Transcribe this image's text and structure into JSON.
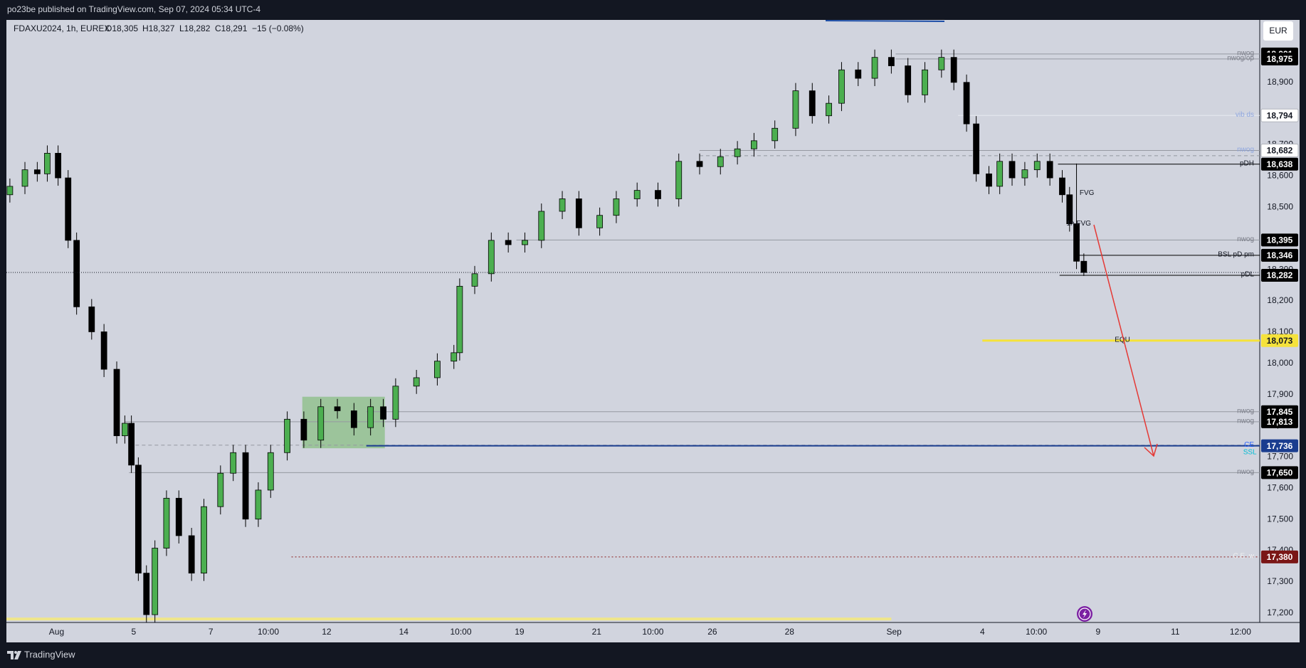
{
  "published": "po23be published on TradingView.com, Sep 07, 2024 05:34 UTC-4",
  "footer": "TradingView",
  "currency": "EUR",
  "header": {
    "symbol": "FDAXU2024, 1h, EUREX",
    "open": "O18,305",
    "high": "H18,327",
    "low": "L18,282",
    "close": "C18,291",
    "change": "−15 (−0.08%)"
  },
  "chart_data": {
    "type": "candlestick",
    "up_color": "#4caf50",
    "down_color": "#000000",
    "grid": false,
    "xlim": [
      -1.3,
      31.19
    ],
    "ylim": [
      17170,
      19100
    ],
    "xticks": [
      {
        "value": 0,
        "label": "Aug"
      },
      {
        "value": 2,
        "label": "5"
      },
      {
        "value": 4,
        "label": "7"
      },
      {
        "value": 5.49,
        "label": "10:00"
      },
      {
        "value": 7,
        "label": "12"
      },
      {
        "value": 9,
        "label": "14"
      },
      {
        "value": 10.48,
        "label": "10:00"
      },
      {
        "value": 12,
        "label": "19"
      },
      {
        "value": 14,
        "label": "21"
      },
      {
        "value": 15.46,
        "label": "10:00"
      },
      {
        "value": 17,
        "label": "26"
      },
      {
        "value": 19,
        "label": "28"
      },
      {
        "value": 21.71,
        "label": "Sep"
      },
      {
        "value": 24,
        "label": "4"
      },
      {
        "value": 25.4,
        "label": "10:00"
      },
      {
        "value": 27,
        "label": "9"
      },
      {
        "value": 29,
        "label": "11"
      },
      {
        "value": 30.69,
        "label": "12:00"
      }
    ],
    "yticks": [
      {
        "value": 17200,
        "label": "17,200"
      },
      {
        "value": 17300,
        "label": "17,300"
      },
      {
        "value": 17400,
        "label": "17,400"
      },
      {
        "value": 17500,
        "label": "17,500"
      },
      {
        "value": 17600,
        "label": "17,600"
      },
      {
        "value": 17700,
        "label": "17,700"
      },
      {
        "value": 17800,
        "label": "17,800"
      },
      {
        "value": 17900,
        "label": "17,900"
      },
      {
        "value": 18000,
        "label": "18,000"
      },
      {
        "value": 18100,
        "label": "18,100"
      },
      {
        "value": 18200,
        "label": "18,200"
      },
      {
        "value": 18300,
        "label": "18,300"
      },
      {
        "value": 18400,
        "label": "18,400"
      },
      {
        "value": 18500,
        "label": "18,500"
      },
      {
        "value": 18600,
        "label": "18,600"
      },
      {
        "value": 18700,
        "label": "18,700"
      },
      {
        "value": 18800,
        "label": "18,800"
      },
      {
        "value": 18900,
        "label": "18,900"
      }
    ],
    "candles": {
      "x": [
        -1.21,
        -0.82,
        -0.5,
        -0.24,
        0.04,
        0.3,
        0.52,
        0.91,
        1.23,
        1.56,
        1.77,
        1.94,
        2.12,
        2.33,
        2.55,
        2.85,
        3.17,
        3.5,
        3.82,
        4.25,
        4.58,
        4.9,
        5.23,
        5.55,
        5.98,
        6.41,
        6.85,
        7.28,
        7.71,
        8.14,
        8.47,
        8.79,
        9.33,
        9.87,
        10.3,
        10.45,
        10.84,
        11.27,
        11.71,
        12.14,
        12.57,
        13.11,
        13.54,
        14.08,
        14.51,
        15.05,
        15.59,
        16.13,
        16.67,
        17.21,
        17.65,
        18.08,
        18.62,
        19.16,
        19.59,
        20.02,
        20.35,
        20.78,
        21.21,
        21.64,
        22.07,
        22.51,
        22.94,
        23.26,
        23.59,
        23.84,
        24.17,
        24.45,
        24.77,
        25.1,
        25.42,
        25.75,
        26.07,
        26.26,
        26.44,
        26.63
      ],
      "open": [
        18540,
        18567,
        18620,
        18607,
        18673,
        18594,
        18394,
        18181,
        18101,
        17981,
        17768,
        17808,
        17674,
        17328,
        17195,
        17408,
        17568,
        17448,
        17328,
        17541,
        17648,
        17714,
        17501,
        17594,
        17714,
        17821,
        17754,
        17861,
        17848,
        17794,
        17861,
        17821,
        17927,
        17954,
        18007,
        18034,
        18247,
        18287,
        18394,
        18380,
        18394,
        18487,
        18527,
        18434,
        18474,
        18527,
        18554,
        18527,
        18647,
        18630,
        18662,
        18687,
        18713,
        18753,
        18873,
        18793,
        18833,
        18940,
        18913,
        18980,
        18953,
        18860,
        18940,
        18980,
        18900,
        18767,
        18607,
        18567,
        18647,
        18594,
        18620,
        18647,
        18594,
        18540,
        18447,
        18327
      ],
      "high": [
        18592,
        18645,
        18645,
        18698,
        18698,
        18619,
        18419,
        18206,
        18126,
        18006,
        17833,
        17833,
        17699,
        17353,
        17433,
        17593,
        17593,
        17473,
        17566,
        17673,
        17739,
        17739,
        17619,
        17739,
        17846,
        17846,
        17886,
        17886,
        17873,
        17886,
        17886,
        17952,
        17979,
        18032,
        18059,
        18272,
        18312,
        18419,
        18419,
        18419,
        18512,
        18552,
        18552,
        18499,
        18552,
        18579,
        18579,
        18672,
        18672,
        18687,
        18712,
        18738,
        18778,
        18898,
        18898,
        18858,
        18965,
        18965,
        19005,
        19005,
        18978,
        18965,
        19005,
        19005,
        18925,
        18792,
        18632,
        18672,
        18672,
        18645,
        18672,
        18672,
        18619,
        18565,
        18640,
        18352
      ],
      "low": [
        18515,
        18542,
        18582,
        18582,
        18569,
        18369,
        18156,
        18076,
        17956,
        17743,
        17743,
        17649,
        17303,
        17170,
        17170,
        17383,
        17423,
        17303,
        17303,
        17516,
        17623,
        17476,
        17476,
        17569,
        17689,
        17729,
        17729,
        17823,
        17769,
        17769,
        17796,
        17796,
        17902,
        17929,
        17982,
        18009,
        18222,
        18262,
        18355,
        18355,
        18369,
        18462,
        18409,
        18409,
        18449,
        18502,
        18502,
        18502,
        18605,
        18605,
        18637,
        18662,
        18688,
        18728,
        18768,
        18768,
        18808,
        18888,
        18888,
        18928,
        18835,
        18835,
        18915,
        18875,
        18742,
        18582,
        18542,
        18542,
        18569,
        18569,
        18595,
        18569,
        18515,
        18422,
        18302,
        18280
      ],
      "close": [
        18567,
        18620,
        18607,
        18673,
        18594,
        18394,
        18181,
        18101,
        17981,
        17768,
        17808,
        17674,
        17328,
        17195,
        17408,
        17568,
        17448,
        17328,
        17541,
        17648,
        17714,
        17501,
        17594,
        17714,
        17821,
        17754,
        17861,
        17848,
        17794,
        17861,
        17821,
        17927,
        17954,
        18007,
        18034,
        18247,
        18287,
        18394,
        18380,
        18394,
        18487,
        18527,
        18434,
        18474,
        18527,
        18554,
        18527,
        18647,
        18630,
        18662,
        18687,
        18713,
        18753,
        18873,
        18793,
        18833,
        18940,
        18913,
        18980,
        18953,
        18860,
        18940,
        18980,
        18900,
        18767,
        18607,
        18567,
        18647,
        18594,
        18620,
        18647,
        18594,
        18540,
        18447,
        18327,
        18291
      ]
    },
    "zone": {
      "x0": 6.37,
      "x1": 8.51,
      "low": 17728,
      "high": 17893,
      "color": "#8fbf8a"
    },
    "levels": [
      {
        "price": {
          "value": 18991,
          "label": "18,991"
        },
        "label": "nwog",
        "x0": 21.75,
        "color": "#9598a1",
        "label_color": "#787b86",
        "tag": "#000000",
        "tag_text": "#ffffff"
      },
      {
        "price": {
          "value": 18975,
          "label": "18,975"
        },
        "label": "nwog/op",
        "x0": 21.75,
        "color": "#9598a1",
        "label_color": "#787b86",
        "tag": "#000000",
        "tag_text": "#ffffff"
      },
      {
        "price": {
          "value": 18794,
          "label": "18,794"
        },
        "label": "vib ds",
        "x0": 23.37,
        "color": "#e8eaf0",
        "label_color": "#8ea6e0",
        "tag": "#ffffff",
        "tag_text": "#131722"
      },
      {
        "price": {
          "value": 18682,
          "label": "18,682"
        },
        "label": "nwog",
        "x0": 16.67,
        "color": "#9598a1",
        "label_color": "#8ea6e0",
        "tag": "#ffffff",
        "tag_text": "#131722"
      },
      {
        "price": 18665,
        "x0": 16.67,
        "color": "#9598a1",
        "style": "dashed"
      },
      {
        "price": {
          "value": 18638,
          "label": "18,638"
        },
        "label": "pDH",
        "x0": 25.96,
        "color": "#000000",
        "label_color": "#131722",
        "tag": "#000000",
        "tag_text": "#ffffff"
      },
      {
        "price": {
          "value": 18395,
          "label": "18,395"
        },
        "label": "nwog",
        "x0": 11.92,
        "color": "#9598a1",
        "label_color": "#787b86",
        "tag": "#000000",
        "tag_text": "#ffffff"
      },
      {
        "price": {
          "value": 18346,
          "label": "18,346"
        },
        "label": "BSL pD pm",
        "x0": 26.5,
        "color": "#000000",
        "label_color": "#131722",
        "tag": "#000000",
        "tag_text": "#ffffff"
      },
      {
        "price": {
          "value": 18282,
          "label": "18,282"
        },
        "label": "pDL",
        "x0": 26.0,
        "color": "#000000",
        "label_color": "#131722",
        "tag": "#000000",
        "tag_text": "#ffffff"
      },
      {
        "price": {
          "value": 18073,
          "label": "18,073"
        },
        "label": "EQU",
        "label_x": 27.43,
        "x0": 24.0,
        "color": "#f5e23b",
        "width": 3,
        "label_color": "#131722",
        "tag": "#f5e23b",
        "tag_text": "#131722"
      },
      {
        "price": {
          "value": 17845,
          "label": "17,845"
        },
        "label": "nwog",
        "x0": 8.03,
        "color": "#9598a1",
        "label_color": "#787b86",
        "tag": "#000000",
        "tag_text": "#ffffff"
      },
      {
        "price": {
          "value": 17813,
          "label": "17,813"
        },
        "label": "nwog",
        "x0": 1.77,
        "color": "#9598a1",
        "label_color": "#787b86",
        "tag": "#000000",
        "tag_text": "#ffffff"
      },
      {
        "price": 17738,
        "x0": 1.88,
        "color": "#9598a1",
        "style": "dashed"
      },
      {
        "price": {
          "value": 17736,
          "label": "17,736"
        },
        "label": "CE",
        "x0": 8.03,
        "color": "#1a3d8f",
        "width": 2,
        "label_color": "#2962ff",
        "tag": "#1a3d8f",
        "tag_text": "#ffffff"
      },
      {
        "price": {
          "value": 17650,
          "label": "17,650"
        },
        "label": "nwog",
        "x0": 1.88,
        "color": "#9598a1",
        "label_color": "#787b86",
        "tag": "#000000",
        "tag_text": "#ffffff"
      },
      {
        "price": {
          "value": 17380,
          "label": "17,380"
        },
        "label": "C.E. w",
        "x0": 6.09,
        "color": "#8b1a1a",
        "style": "dotted",
        "label_color": "#f0f0f0",
        "tag": "#7a1616",
        "tag_text": "#ffffff"
      },
      {
        "price": 17181,
        "x0": -1.3,
        "x1": 21.64,
        "color": "#efe68a",
        "width": 4
      }
    ],
    "annotations": [
      {
        "text": "FVG",
        "x": 26.52,
        "price": 18546,
        "color": "#131722"
      },
      {
        "text": "1h FVG",
        "x": 26.18,
        "price": 18447,
        "color": "#131722"
      },
      {
        "text": "SSL",
        "x": 30.76,
        "price": 17715,
        "color": "#00bcd4"
      }
    ]
  }
}
